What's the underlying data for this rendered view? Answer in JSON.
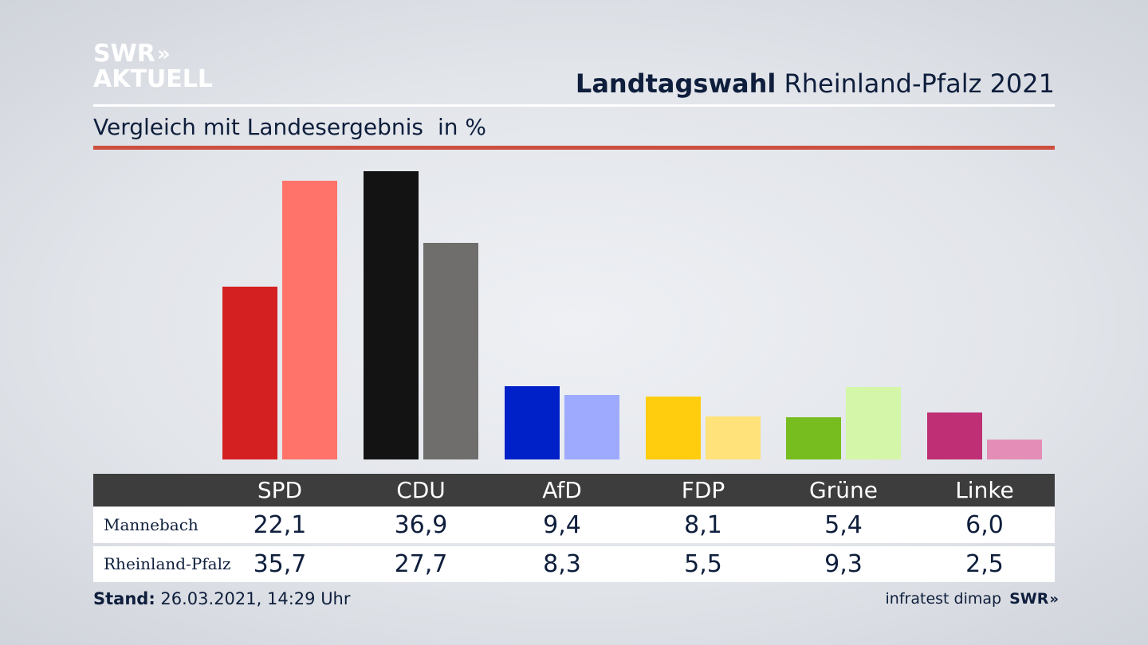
{
  "logo": {
    "line1": "SWR",
    "line1_chevrons": "»",
    "line2": "AKTUELL"
  },
  "header": {
    "title_bold": "Landtagswahl",
    "title_rest": "Rheinland-Pfalz 2021"
  },
  "subtitle": {
    "text": "Vergleich mit Landesergebnis",
    "unit": "in %"
  },
  "colors": {
    "accent_line": "#cd4f3f",
    "table_header_bg": "#3d3d3d",
    "SPD": [
      "#d42020",
      "#ff736b"
    ],
    "CDU": [
      "#131313",
      "#6f6e6c"
    ],
    "AfD": [
      "#0021c8",
      "#9daafe"
    ],
    "FDP": [
      "#ffcd0d",
      "#ffe27a"
    ],
    "Grüne": [
      "#78bd20",
      "#d4f6a8"
    ],
    "Linke": [
      "#be2f75",
      "#e38db7"
    ]
  },
  "chart_data": {
    "type": "bar",
    "categories": [
      "SPD",
      "CDU",
      "AfD",
      "FDP",
      "Grüne",
      "Linke"
    ],
    "series": [
      {
        "name": "Mannebach",
        "values": [
          22.1,
          36.9,
          9.4,
          8.1,
          5.4,
          6.0
        ]
      },
      {
        "name": "Rheinland-Pfalz",
        "values": [
          35.7,
          27.7,
          8.3,
          5.5,
          9.3,
          2.5
        ]
      }
    ],
    "ylim": [
      0,
      36.9
    ],
    "grid": false,
    "legend": "table-below"
  },
  "table": {
    "headers": [
      "SPD",
      "CDU",
      "AfD",
      "FDP",
      "Grüne",
      "Linke"
    ],
    "rows": [
      {
        "label": "Mannebach",
        "values": [
          "22,1",
          "36,9",
          "9,4",
          "8,1",
          "5,4",
          "6,0"
        ]
      },
      {
        "label": "Rheinland-Pfalz",
        "values": [
          "35,7",
          "27,7",
          "8,3",
          "5,5",
          "9,3",
          "2,5"
        ]
      }
    ]
  },
  "footer": {
    "stand_label": "Stand:",
    "stand_value": "26.03.2021, 14:29 Uhr",
    "source": "infratest dimap",
    "brand": "SWR",
    "brand_chevrons": "»"
  }
}
